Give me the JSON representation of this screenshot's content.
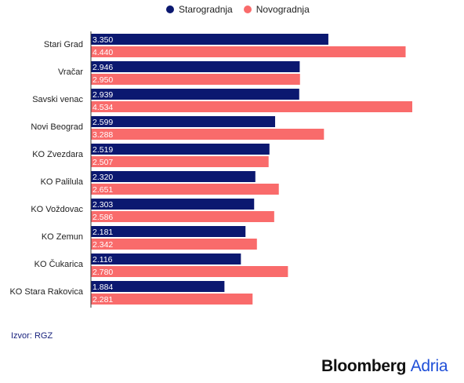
{
  "legend": [
    {
      "label": "Starogradnja",
      "color": "#0b1870"
    },
    {
      "label": "Novogradnja",
      "color": "#f96b6b"
    }
  ],
  "source": "Izvor: RGZ",
  "brand": {
    "main": "Bloomberg",
    "accent": "Adria"
  },
  "chart_data": {
    "type": "bar",
    "orientation": "horizontal",
    "categories": [
      "Stari Grad",
      "Vračar",
      "Savski venac",
      "Novi Beograd",
      "KO Zvezdara",
      "KO Palilula",
      "KO Voždovac",
      "KO Zemun",
      "KO Čukarica",
      "KO Stara Rakovica"
    ],
    "series": [
      {
        "name": "Starogradnja",
        "color": "#0b1870",
        "values": [
          3350,
          2946,
          2939,
          2599,
          2519,
          2320,
          2303,
          2181,
          2116,
          1884
        ],
        "labels": [
          "3.350",
          "2.946",
          "2.939",
          "2.599",
          "2.519",
          "2.320",
          "2.303",
          "2.181",
          "2.116",
          "1.884"
        ]
      },
      {
        "name": "Novogradnja",
        "color": "#f96b6b",
        "values": [
          4440,
          2950,
          4534,
          3288,
          2507,
          2651,
          2586,
          2342,
          2780,
          2281
        ],
        "labels": [
          "4.440",
          "2.950",
          "4.534",
          "3.288",
          "2.507",
          "2.651",
          "2.586",
          "2.342",
          "2.780",
          "2.281"
        ]
      }
    ],
    "xlim": [
      0,
      4534
    ],
    "grid": false,
    "legend_position": "top-center"
  }
}
